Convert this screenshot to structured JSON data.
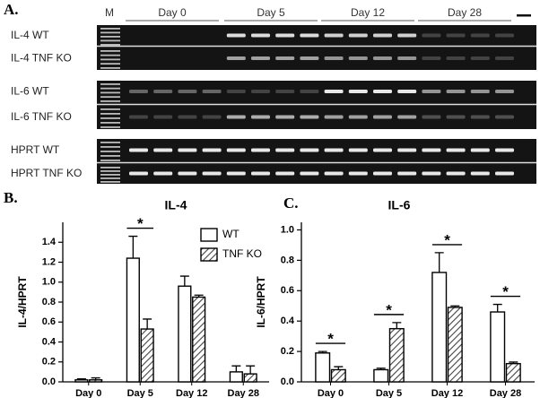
{
  "panel_a": {
    "label": "A.",
    "marker": "M",
    "days": [
      "Day 0",
      "Day 5",
      "Day 12",
      "Day 28"
    ],
    "rows": [
      "IL-4 WT",
      "IL-4 TNF KO",
      "IL-6 WT",
      "IL-6 TNF KO",
      "HPRT WT",
      "HPRT TNF KO"
    ]
  },
  "chart_data": [
    {
      "type": "bar",
      "panel_label": "B.",
      "title": "IL-4",
      "y_label": "IL-4/HPRT",
      "categories": [
        "Day 0",
        "Day 5",
        "Day 12",
        "Day 28"
      ],
      "series": [
        {
          "name": "WT",
          "color": "#ffffff",
          "hatch": false,
          "values": [
            0.02,
            1.24,
            0.96,
            0.1
          ],
          "errors": [
            0.01,
            0.22,
            0.1,
            0.06
          ]
        },
        {
          "name": "TNF KO",
          "color": "#555555",
          "hatch": true,
          "values": [
            0.02,
            0.53,
            0.85,
            0.08
          ],
          "errors": [
            0.02,
            0.1,
            0.02,
            0.08
          ]
        }
      ],
      "ylim": [
        0,
        1.6
      ],
      "yticks": [
        {
          "value": 0,
          "label": "0.0"
        },
        0.2,
        0.4,
        0.6,
        0.8,
        {
          "value": 1,
          "label": "1.0"
        },
        1.2,
        1.4
      ],
      "legend": "upper right",
      "annotations": [
        {
          "text": "*",
          "x": "Day 5"
        }
      ]
    },
    {
      "type": "bar",
      "panel_label": "C.",
      "title": "IL-6",
      "y_label": "IL-6/HPRT",
      "categories": [
        "Day 0",
        "Day 5",
        "Day 12",
        "Day 28"
      ],
      "series": [
        {
          "color": "#ffffff",
          "hatch": false,
          "values": [
            0.19,
            0.08,
            0.72,
            0.46
          ],
          "errors": [
            0.01,
            0.01,
            0.13,
            0.05
          ]
        },
        {
          "color": "#555555",
          "hatch": true,
          "values": [
            0.08,
            0.35,
            0.49,
            0.12
          ],
          "errors": [
            0.02,
            0.04,
            0.01,
            0.01
          ]
        }
      ],
      "ylim": [
        0,
        1.05
      ],
      "yticks": [
        {
          "value": 0,
          "label": "0.0"
        },
        0.2,
        0.4,
        0.6,
        0.8,
        {
          "value": 1,
          "label": "1.0"
        }
      ],
      "legend": false,
      "annotations": [
        {
          "text": "*",
          "x": "Day 0"
        },
        {
          "text": "*",
          "x": "Day 5"
        },
        {
          "text": "*",
          "x": "Day 12"
        },
        {
          "text": "*",
          "x": "Day 28"
        }
      ]
    }
  ]
}
